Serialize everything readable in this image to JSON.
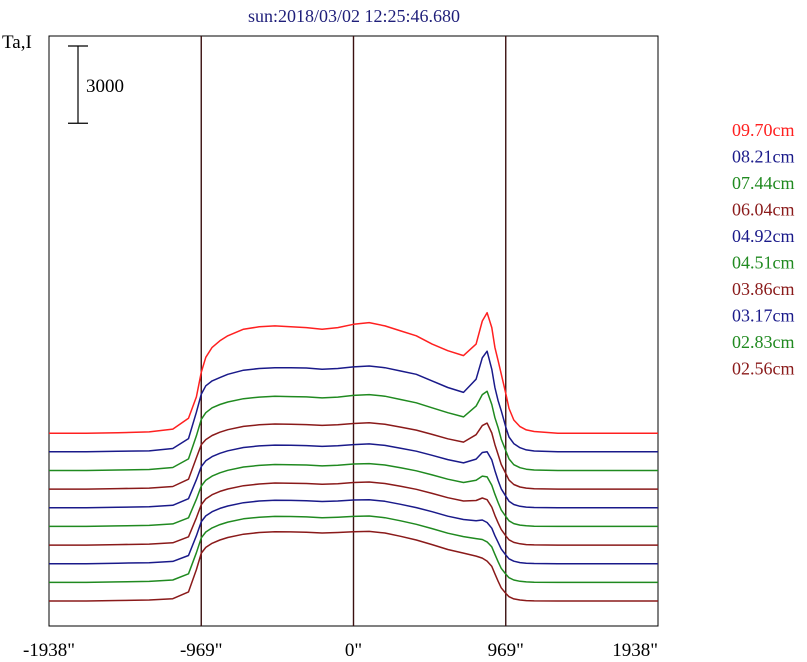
{
  "chart_data": {
    "type": "line",
    "title": "sun:2018/03/02 12:25:46.680",
    "ylabel": "Ta,I",
    "scale_bar_label": "3000",
    "scale_bar_value": 3000,
    "xlim": [
      -1938,
      1938
    ],
    "ticks": [
      {
        "value": -1938,
        "label": "-1938\""
      },
      {
        "value": -969,
        "label": "-969\""
      },
      {
        "value": 0,
        "label": "0\""
      },
      {
        "value": 969,
        "label": "969\""
      },
      {
        "value": 1938,
        "label": "1938\""
      }
    ],
    "vlines": [
      -969,
      0,
      969
    ],
    "grid": false,
    "legend_position": "right",
    "stack_offset": 1130,
    "x": [
      -1938,
      -1700,
      -1500,
      -1300,
      -1150,
      -1050,
      -1000,
      -969,
      -940,
      -900,
      -850,
      -800,
      -700,
      -600,
      -500,
      -400,
      -300,
      -200,
      -100,
      0,
      100,
      200,
      300,
      400,
      500,
      600,
      700,
      780,
      820,
      850,
      880,
      900,
      920,
      940,
      969,
      990,
      1020,
      1060,
      1100,
      1150,
      1300,
      1500,
      1700,
      1938
    ],
    "series": [
      {
        "name": "09.70cm",
        "color": "#ff2020",
        "values": [
          0,
          0,
          30,
          80,
          250,
          900,
          2200,
          3700,
          4600,
          5200,
          5600,
          5900,
          6300,
          6450,
          6500,
          6450,
          6400,
          6300,
          6400,
          6600,
          6700,
          6500,
          6200,
          5900,
          5400,
          5000,
          4700,
          5400,
          6800,
          7300,
          6400,
          5200,
          4400,
          3600,
          2400,
          1500,
          800,
          400,
          200,
          100,
          0,
          0,
          0,
          0
        ]
      },
      {
        "name": "08.21cm",
        "color": "#1a1a8a",
        "values": [
          0,
          0,
          30,
          60,
          200,
          800,
          2400,
          3500,
          4000,
          4300,
          4500,
          4700,
          4950,
          5050,
          5100,
          5100,
          5080,
          5000,
          5050,
          5150,
          5200,
          5100,
          4900,
          4700,
          4300,
          3900,
          3600,
          4400,
          5700,
          6100,
          5000,
          3900,
          3100,
          2500,
          1500,
          900,
          500,
          250,
          120,
          50,
          0,
          0,
          0,
          0
        ]
      },
      {
        "name": "07.44cm",
        "color": "#208a20",
        "values": [
          0,
          0,
          30,
          60,
          180,
          700,
          2100,
          3100,
          3500,
          3800,
          4000,
          4150,
          4350,
          4450,
          4500,
          4480,
          4460,
          4400,
          4450,
          4550,
          4600,
          4500,
          4300,
          4100,
          3800,
          3500,
          3250,
          3900,
          4600,
          4800,
          4000,
          3200,
          2600,
          1900,
          1200,
          700,
          350,
          170,
          80,
          30,
          0,
          0,
          0,
          0
        ]
      },
      {
        "name": "06.04cm",
        "color": "#8a1a1a",
        "values": [
          0,
          0,
          30,
          60,
          160,
          600,
          1900,
          2700,
          3000,
          3250,
          3450,
          3600,
          3800,
          3900,
          3950,
          3930,
          3910,
          3860,
          3900,
          3980,
          4020,
          3930,
          3760,
          3580,
          3320,
          3050,
          2850,
          3300,
          3850,
          4000,
          3400,
          2700,
          2100,
          1500,
          950,
          550,
          280,
          130,
          60,
          20,
          0,
          0,
          0,
          0
        ]
      },
      {
        "name": "04.92cm",
        "color": "#1a1a8a",
        "values": [
          0,
          0,
          30,
          60,
          150,
          550,
          1700,
          2500,
          2850,
          3100,
          3300,
          3450,
          3650,
          3750,
          3800,
          3790,
          3770,
          3720,
          3760,
          3830,
          3870,
          3780,
          3610,
          3430,
          3180,
          2920,
          2720,
          2950,
          3350,
          3400,
          2900,
          2250,
          1650,
          1150,
          700,
          400,
          200,
          90,
          40,
          15,
          0,
          0,
          0,
          0
        ]
      },
      {
        "name": "04.51cm",
        "color": "#208a20",
        "values": [
          0,
          0,
          30,
          60,
          150,
          520,
          1650,
          2450,
          2800,
          3050,
          3250,
          3400,
          3600,
          3700,
          3750,
          3740,
          3720,
          3670,
          3710,
          3780,
          3810,
          3720,
          3550,
          3370,
          3120,
          2860,
          2660,
          2800,
          3050,
          3000,
          2500,
          1950,
          1450,
          1000,
          600,
          340,
          170,
          80,
          35,
          12,
          0,
          0,
          0,
          0
        ]
      },
      {
        "name": "03.86cm",
        "color": "#8a1a1a",
        "values": [
          0,
          0,
          30,
          60,
          140,
          500,
          1650,
          2450,
          2800,
          3050,
          3250,
          3400,
          3600,
          3700,
          3760,
          3750,
          3730,
          3680,
          3720,
          3790,
          3820,
          3730,
          3560,
          3380,
          3130,
          2870,
          2670,
          2700,
          2850,
          2750,
          2300,
          1800,
          1350,
          950,
          560,
          320,
          160,
          75,
          30,
          10,
          0,
          0,
          0,
          0
        ]
      },
      {
        "name": "03.17cm",
        "color": "#1a1a8a",
        "values": [
          0,
          0,
          30,
          60,
          140,
          500,
          1700,
          2550,
          2900,
          3150,
          3350,
          3500,
          3700,
          3800,
          3850,
          3840,
          3820,
          3770,
          3800,
          3860,
          3880,
          3780,
          3600,
          3400,
          3150,
          2880,
          2680,
          2600,
          2650,
          2500,
          2150,
          1700,
          1300,
          900,
          530,
          300,
          150,
          70,
          28,
          10,
          0,
          0,
          0,
          0
        ]
      },
      {
        "name": "02.83cm",
        "color": "#208a20",
        "values": [
          0,
          0,
          30,
          60,
          140,
          520,
          1800,
          2700,
          3050,
          3300,
          3500,
          3650,
          3850,
          3950,
          4000,
          3990,
          3970,
          3920,
          3950,
          4000,
          4020,
          3920,
          3730,
          3520,
          3260,
          2980,
          2770,
          2650,
          2600,
          2450,
          2150,
          1700,
          1250,
          850,
          500,
          280,
          140,
          65,
          25,
          8,
          0,
          0,
          0,
          0
        ]
      },
      {
        "name": "02.56cm",
        "color": "#8a1a1a",
        "values": [
          0,
          0,
          30,
          60,
          140,
          550,
          1900,
          2900,
          3250,
          3500,
          3700,
          3850,
          4050,
          4150,
          4200,
          4190,
          4170,
          4120,
          4150,
          4200,
          4220,
          4120,
          3920,
          3700,
          3420,
          3120,
          2900,
          2720,
          2600,
          2420,
          2100,
          1650,
          1200,
          800,
          460,
          260,
          130,
          60,
          22,
          6,
          0,
          0,
          0,
          0
        ]
      }
    ]
  }
}
